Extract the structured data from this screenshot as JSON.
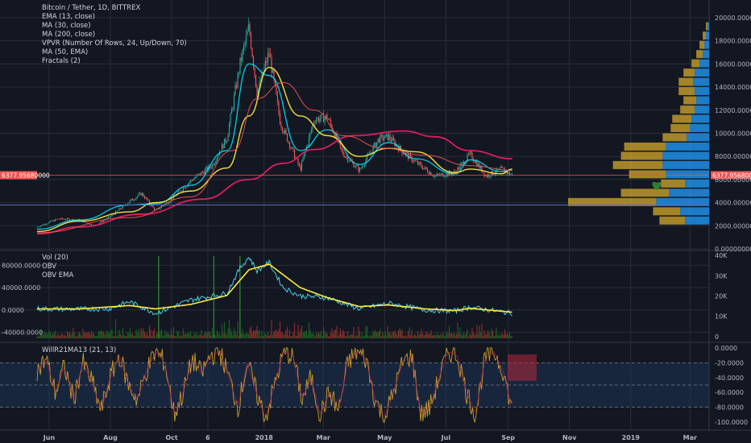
{
  "legend_main": [
    "Bitcoin / Tether, 1D, BITTREX",
    "EMA (13, close)",
    "MA (30, close)",
    "MA (200, close)",
    "VPVR (Number Of Rows, 24, Up/Down, 70)",
    "MA (50, EMA)",
    "Fractals (2)"
  ],
  "legend_vol": [
    "Vol (20)",
    "OBV",
    "OBV EMA"
  ],
  "legend_wr": "WillR21MA13 (21, 13)",
  "price_tag": "6377.95680000",
  "colors": {
    "background": "#131722",
    "up_candle": "#26a69a",
    "down_candle": "#ef5350",
    "ema13": "#00e5ff",
    "ma30": "#ffeb3b",
    "ma200": "#e91e63",
    "ema50": "#ef5350",
    "obv": "#4dd0e1",
    "obv_ema": "#ffeb3b",
    "vpvr_up": "#2196f3",
    "vpvr_down": "#c8a02a",
    "wr": "#c8a02a",
    "price_line": "#ef5350",
    "support_line": "#5c6bc0"
  },
  "chart_data": [
    {
      "type": "line",
      "panel": "price",
      "y_ticks": [
        "0.00000000",
        "2000.00000000",
        "4000.00000000",
        "6000.00000000",
        "8000.00000000",
        "10000.00000000",
        "12000.00000000",
        "14000.00000000",
        "16000.00000000",
        "18000.00000000",
        "20000.00000000"
      ],
      "ylim": [
        0,
        20000
      ],
      "x_ticks": [
        "Jun",
        "Aug",
        "Oct",
        "6",
        "2018",
        "Mar",
        "May",
        "Jul",
        "Sep",
        "Nov",
        "2019",
        "Mar"
      ],
      "series": [
        {
          "name": "Bitcoin / Tether, 1D, BITTREX",
          "x": [
            "2017-05-20",
            "2017-06-10",
            "2017-07-01",
            "2017-07-16",
            "2017-08-01",
            "2017-08-20",
            "2017-09-01",
            "2017-09-15",
            "2017-10-01",
            "2017-10-20",
            "2017-11-10",
            "2017-11-25",
            "2017-12-08",
            "2017-12-17",
            "2017-12-25",
            "2018-01-06",
            "2018-01-17",
            "2018-02-06",
            "2018-02-20",
            "2018-03-05",
            "2018-03-20",
            "2018-04-06",
            "2018-04-25",
            "2018-05-05",
            "2018-05-20",
            "2018-06-01",
            "2018-06-20",
            "2018-07-10",
            "2018-07-25",
            "2018-08-10",
            "2018-08-25",
            "2018-09-05"
          ],
          "values": [
            1900,
            2600,
            2500,
            2000,
            2800,
            4100,
            4800,
            3300,
            4300,
            5900,
            7200,
            9600,
            16000,
            19200,
            13500,
            17000,
            11000,
            6900,
            11200,
            11400,
            8300,
            6800,
            9500,
            9700,
            8300,
            7500,
            6300,
            6600,
            8200,
            6300,
            6900,
            6380
          ]
        },
        {
          "name": "EMA (13, close)",
          "x": [
            "2017-05-20",
            "2017-07-01",
            "2017-08-20",
            "2017-09-15",
            "2017-10-20",
            "2017-11-25",
            "2017-12-17",
            "2018-01-06",
            "2018-02-06",
            "2018-03-05",
            "2018-04-06",
            "2018-05-05",
            "2018-06-01",
            "2018-07-10",
            "2018-07-25",
            "2018-08-25",
            "2018-09-05"
          ],
          "values": [
            1700,
            2500,
            3800,
            3900,
            5500,
            8500,
            16000,
            15000,
            8500,
            10300,
            7300,
            9200,
            7800,
            6500,
            7700,
            6700,
            6800
          ]
        },
        {
          "name": "MA (30, close)",
          "x": [
            "2017-05-20",
            "2017-07-01",
            "2017-08-20",
            "2017-09-15",
            "2017-10-20",
            "2017-11-25",
            "2017-12-17",
            "2018-01-06",
            "2018-02-06",
            "2018-03-05",
            "2018-04-06",
            "2018-05-05",
            "2018-06-01",
            "2018-07-10",
            "2018-07-25",
            "2018-08-25",
            "2018-09-05"
          ],
          "values": [
            1500,
            2400,
            3200,
            4000,
            5000,
            7000,
            11500,
            15700,
            11500,
            9800,
            8000,
            8700,
            8400,
            6600,
            6900,
            6500,
            6900
          ]
        },
        {
          "name": "MA (200, close)",
          "x": [
            "2017-05-20",
            "2017-07-01",
            "2017-09-01",
            "2017-11-01",
            "2017-12-17",
            "2018-01-20",
            "2018-02-20",
            "2018-04-01",
            "2018-05-20",
            "2018-06-20",
            "2018-07-25",
            "2018-09-05"
          ],
          "values": [
            1300,
            1900,
            3000,
            4300,
            6000,
            7400,
            8600,
            9800,
            10200,
            9700,
            8500,
            7800
          ]
        },
        {
          "name": "MA (50, EMA)",
          "x": [
            "2017-05-20",
            "2017-08-20",
            "2017-10-20",
            "2017-12-01",
            "2017-12-25",
            "2018-01-20",
            "2018-02-20",
            "2018-03-20",
            "2018-05-01",
            "2018-06-10",
            "2018-07-25",
            "2018-09-05"
          ],
          "values": [
            1400,
            2700,
            4500,
            8500,
            13000,
            14400,
            12000,
            9800,
            8700,
            8100,
            7200,
            6800
          ]
        }
      ],
      "fractals_marker_price": 5500,
      "vpvr_rows": [
        {
          "price_from": 2000,
          "price_to": 2800,
          "up": 1500,
          "down": 1600
        },
        {
          "price_from": 2800,
          "price_to": 3600,
          "up": 1800,
          "down": 1700
        },
        {
          "price_from": 3600,
          "price_to": 4400,
          "up": 3300,
          "down": 5500
        },
        {
          "price_from": 4400,
          "price_to": 5200,
          "up": 2500,
          "down": 3000
        },
        {
          "price_from": 5200,
          "price_to": 6000,
          "up": 1500,
          "down": 1500
        },
        {
          "price_from": 6000,
          "price_to": 6800,
          "up": 2700,
          "down": 2300
        },
        {
          "price_from": 6800,
          "price_to": 7600,
          "up": 2900,
          "down": 3100
        },
        {
          "price_from": 7600,
          "price_to": 8400,
          "up": 2900,
          "down": 2600
        },
        {
          "price_from": 8400,
          "price_to": 9200,
          "up": 2700,
          "down": 2600
        },
        {
          "price_from": 9200,
          "price_to": 10000,
          "up": 1400,
          "down": 1500
        },
        {
          "price_from": 10000,
          "price_to": 10800,
          "up": 1200,
          "down": 1200
        },
        {
          "price_from": 10800,
          "price_to": 11600,
          "up": 1100,
          "down": 1200
        },
        {
          "price_from": 11600,
          "price_to": 12400,
          "up": 900,
          "down": 900
        },
        {
          "price_from": 12400,
          "price_to": 13200,
          "up": 800,
          "down": 800
        },
        {
          "price_from": 13200,
          "price_to": 14000,
          "up": 900,
          "down": 1000
        },
        {
          "price_from": 14000,
          "price_to": 14800,
          "up": 1000,
          "down": 900
        },
        {
          "price_from": 14800,
          "price_to": 15600,
          "up": 900,
          "down": 700
        },
        {
          "price_from": 15600,
          "price_to": 16400,
          "up": 600,
          "down": 500
        },
        {
          "price_from": 16400,
          "price_to": 17200,
          "up": 400,
          "down": 400
        },
        {
          "price_from": 17200,
          "price_to": 18000,
          "up": 300,
          "down": 300
        },
        {
          "price_from": 18000,
          "price_to": 18800,
          "up": 200,
          "down": 200
        },
        {
          "price_from": 18800,
          "price_to": 19600,
          "up": 100,
          "down": 100
        }
      ]
    },
    {
      "type": "line",
      "panel": "volume",
      "left_y_ticks": [
        "80000.0000",
        "40000.0000",
        "0.0000",
        "-40000.0000"
      ],
      "left_ylim": [
        -55000,
        105000
      ],
      "right_y_ticks": [
        "40K",
        "30K",
        "20K",
        "10K",
        "0"
      ],
      "right_ylim": [
        -2000,
        42000
      ],
      "series": [
        {
          "name": "OBV",
          "x": [
            "2017-05-20",
            "2017-07-01",
            "2017-08-01",
            "2017-08-20",
            "2017-09-15",
            "2017-10-20",
            "2017-11-25",
            "2017-12-08",
            "2017-12-17",
            "2017-12-25",
            "2018-01-06",
            "2018-01-20",
            "2018-02-06",
            "2018-03-05",
            "2018-04-06",
            "2018-05-05",
            "2018-06-10",
            "2018-07-10",
            "2018-07-25",
            "2018-09-05"
          ],
          "values": [
            2000,
            1500,
            2500,
            15000,
            -6000,
            18000,
            30000,
            75000,
            95000,
            70000,
            85000,
            40000,
            25000,
            22000,
            2000,
            12000,
            0,
            -2000,
            5000,
            -6000
          ]
        },
        {
          "name": "OBV EMA",
          "x": [
            "2017-05-20",
            "2017-07-01",
            "2017-08-20",
            "2017-09-15",
            "2017-10-20",
            "2017-11-25",
            "2017-12-17",
            "2018-01-06",
            "2018-02-06",
            "2018-03-05",
            "2018-04-06",
            "2018-05-05",
            "2018-06-10",
            "2018-07-10",
            "2018-07-25",
            "2018-09-05"
          ],
          "values": [
            2000,
            1800,
            8000,
            2000,
            10000,
            26000,
            72000,
            82000,
            40000,
            22000,
            6000,
            9000,
            2000,
            -1000,
            3000,
            -4000
          ]
        }
      ]
    },
    {
      "type": "line",
      "panel": "williams_r",
      "y_ticks": [
        "0.0000",
        "-20.0000",
        "-40.0000",
        "-60.0000",
        "-80.0000",
        "-100.0000"
      ],
      "ylim": [
        -100,
        0
      ],
      "series": [
        {
          "name": "WillR21MA13 (21, 13)",
          "values": [
            -30,
            -15,
            -60,
            -25,
            -70,
            -20,
            -45,
            -85,
            -40,
            -10,
            -50,
            -70,
            -30,
            -5,
            -20,
            -90,
            -60,
            -15,
            -35,
            -10,
            -5,
            -40,
            -80,
            -20,
            -60,
            -95,
            -50,
            -5,
            -10,
            -70,
            -40,
            -90,
            -60,
            -85,
            -20,
            -5,
            -15,
            -70,
            -95,
            -60,
            -20,
            -10,
            -90,
            -80,
            -40,
            -5,
            -10,
            -60,
            -90,
            -15,
            -5,
            -30,
            -85
          ]
        }
      ]
    }
  ]
}
